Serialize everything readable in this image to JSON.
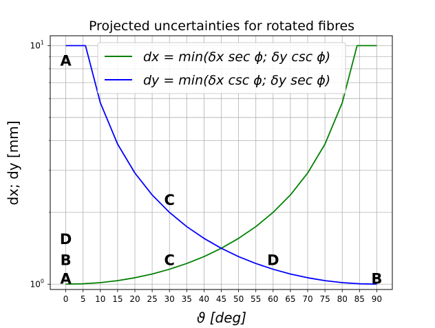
{
  "chart_data": {
    "type": "line",
    "title": "Projected uncertainties for rotated fibres",
    "xlabel": "ϑ [deg]",
    "ylabel": "dx; dy [mm]",
    "yscale": "log",
    "xlim": [
      -4.5,
      94.5
    ],
    "ylim": [
      0.95,
      11.0
    ],
    "grid": true,
    "legend_position": "top-center",
    "x_ticks": [
      0,
      5,
      10,
      15,
      20,
      25,
      30,
      35,
      40,
      45,
      50,
      55,
      60,
      65,
      70,
      75,
      80,
      85,
      90
    ],
    "y_tick_labels": [
      {
        "value": 10,
        "base": "10",
        "exp": "1"
      },
      {
        "value": 1,
        "base": "10",
        "exp": "0"
      }
    ],
    "series": [
      {
        "name": "dx = min(δx sec ϕ; δy csc ϕ)",
        "color": "#008000",
        "x": [
          0,
          5,
          10,
          15,
          20,
          25,
          30,
          35,
          40,
          45,
          50,
          55,
          60,
          65,
          70,
          75,
          80,
          84.3,
          85,
          90
        ],
        "y": [
          1.0,
          1.004,
          1.015,
          1.035,
          1.064,
          1.103,
          1.155,
          1.221,
          1.305,
          1.414,
          1.556,
          1.743,
          2.0,
          2.366,
          2.924,
          3.864,
          5.759,
          10.0,
          10.0,
          10.0
        ]
      },
      {
        "name": "dy = min(δx csc ϕ; δy sec ϕ)",
        "color": "#0000ff",
        "x": [
          0,
          5,
          5.7,
          10,
          15,
          20,
          25,
          30,
          35,
          40,
          45,
          50,
          55,
          60,
          65,
          70,
          75,
          80,
          85,
          90
        ],
        "y": [
          10.0,
          10.0,
          10.0,
          5.759,
          3.864,
          2.924,
          2.366,
          2.0,
          1.743,
          1.556,
          1.414,
          1.305,
          1.221,
          1.155,
          1.103,
          1.064,
          1.035,
          1.015,
          1.004,
          1.0
        ]
      }
    ],
    "annotations": [
      {
        "text": "A",
        "x": 0,
        "y": 8.7
      },
      {
        "text": "D",
        "x": 0,
        "y": 1.55
      },
      {
        "text": "B",
        "x": 0,
        "y": 1.27
      },
      {
        "text": "A",
        "x": 0,
        "y": 1.06
      },
      {
        "text": "C",
        "x": 30,
        "y": 2.27
      },
      {
        "text": "C",
        "x": 30,
        "y": 1.27
      },
      {
        "text": "D",
        "x": 60,
        "y": 1.27
      },
      {
        "text": "B",
        "x": 90,
        "y": 1.06
      }
    ]
  }
}
